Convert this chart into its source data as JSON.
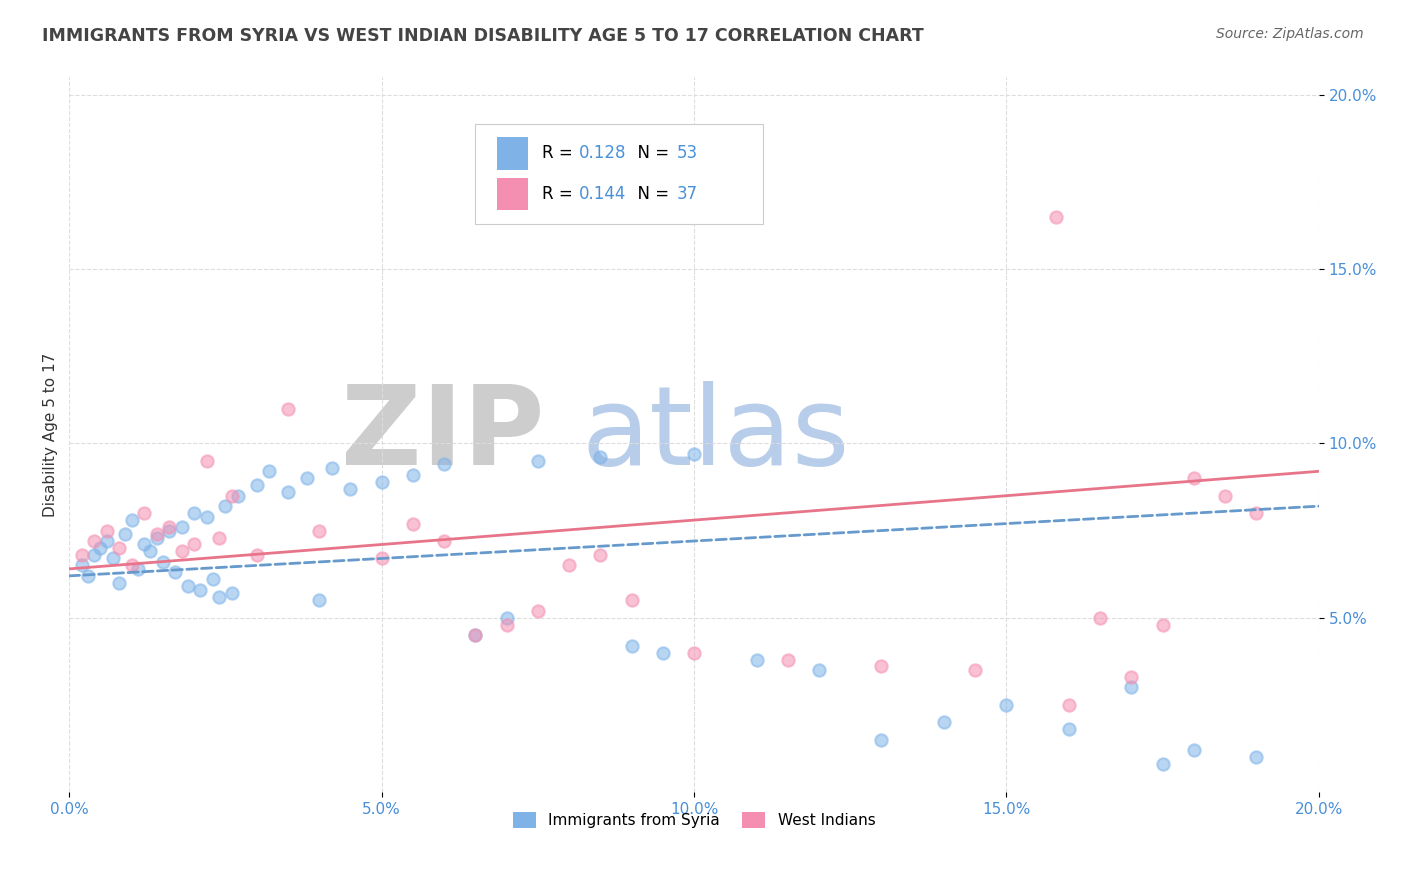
{
  "title": "IMMIGRANTS FROM SYRIA VS WEST INDIAN DISABILITY AGE 5 TO 17 CORRELATION CHART",
  "source": "Source: ZipAtlas.com",
  "ylabel": "Disability Age 5 to 17",
  "xlim": [
    0.0,
    0.2
  ],
  "ylim": [
    0.0,
    0.205
  ],
  "xtick_vals": [
    0.0,
    0.05,
    0.1,
    0.15,
    0.2
  ],
  "ytick_vals": [
    0.05,
    0.1,
    0.15,
    0.2
  ],
  "xticklabels": [
    "0.0%",
    "5.0%",
    "10.0%",
    "15.0%",
    "20.0%"
  ],
  "yticklabels": [
    "5.0%",
    "10.0%",
    "15.0%",
    "20.0%"
  ],
  "syria_color": "#7fb3e8",
  "west_indian_color": "#f48fb1",
  "syria_label": "Immigrants from Syria",
  "west_indian_label": "West Indians",
  "R_syria": "0.128",
  "N_syria": "53",
  "R_west_indian": "0.144",
  "N_west_indian": "37",
  "tick_color": "#4a90d9",
  "title_color": "#444444",
  "source_color": "#666666",
  "grid_color": "#dddddd",
  "syria_trend_color": "#6699cc",
  "wi_trend_color": "#e8748a",
  "watermark_zip_color": "#c8c8c8",
  "watermark_atlas_color": "#b0c8e8",
  "syria_x": [
    0.002,
    0.003,
    0.004,
    0.005,
    0.006,
    0.007,
    0.008,
    0.009,
    0.01,
    0.011,
    0.012,
    0.013,
    0.014,
    0.015,
    0.016,
    0.017,
    0.018,
    0.019,
    0.02,
    0.021,
    0.022,
    0.023,
    0.024,
    0.025,
    0.026,
    0.027,
    0.03,
    0.032,
    0.035,
    0.038,
    0.04,
    0.042,
    0.045,
    0.05,
    0.055,
    0.06,
    0.065,
    0.07,
    0.075,
    0.085,
    0.09,
    0.095,
    0.1,
    0.11,
    0.12,
    0.13,
    0.14,
    0.15,
    0.16,
    0.17,
    0.175,
    0.18,
    0.19
  ],
  "syria_y": [
    0.065,
    0.062,
    0.068,
    0.07,
    0.072,
    0.067,
    0.06,
    0.074,
    0.078,
    0.064,
    0.071,
    0.069,
    0.073,
    0.066,
    0.075,
    0.063,
    0.076,
    0.059,
    0.08,
    0.058,
    0.079,
    0.061,
    0.056,
    0.082,
    0.057,
    0.085,
    0.088,
    0.092,
    0.086,
    0.09,
    0.055,
    0.093,
    0.087,
    0.089,
    0.091,
    0.094,
    0.045,
    0.05,
    0.095,
    0.096,
    0.042,
    0.04,
    0.097,
    0.038,
    0.035,
    0.015,
    0.02,
    0.025,
    0.018,
    0.03,
    0.008,
    0.012,
    0.01
  ],
  "wi_x": [
    0.002,
    0.004,
    0.006,
    0.008,
    0.01,
    0.012,
    0.014,
    0.016,
    0.018,
    0.02,
    0.022,
    0.024,
    0.026,
    0.03,
    0.035,
    0.04,
    0.05,
    0.055,
    0.06,
    0.065,
    0.07,
    0.075,
    0.08,
    0.085,
    0.09,
    0.1,
    0.115,
    0.13,
    0.145,
    0.16,
    0.165,
    0.17,
    0.175,
    0.18,
    0.185,
    0.19,
    0.158
  ],
  "wi_y": [
    0.068,
    0.072,
    0.075,
    0.07,
    0.065,
    0.08,
    0.074,
    0.076,
    0.069,
    0.071,
    0.095,
    0.073,
    0.085,
    0.068,
    0.11,
    0.075,
    0.067,
    0.077,
    0.072,
    0.045,
    0.048,
    0.052,
    0.065,
    0.068,
    0.055,
    0.04,
    0.038,
    0.036,
    0.035,
    0.025,
    0.05,
    0.033,
    0.048,
    0.09,
    0.085,
    0.08,
    0.165
  ],
  "syria_trend_x0": 0.0,
  "syria_trend_x1": 0.2,
  "syria_trend_y0": 0.062,
  "syria_trend_y1": 0.082,
  "wi_trend_x0": 0.0,
  "wi_trend_x1": 0.2,
  "wi_trend_y0": 0.064,
  "wi_trend_y1": 0.092
}
